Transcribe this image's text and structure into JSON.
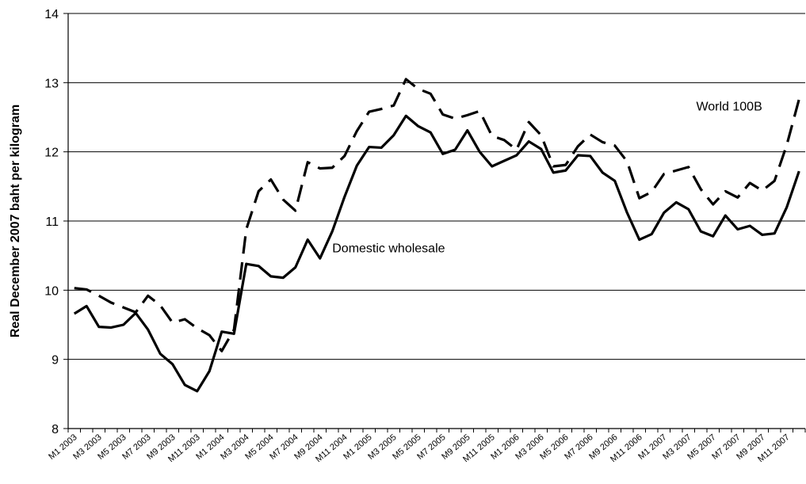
{
  "chart_data": {
    "type": "line",
    "title": "",
    "xlabel": "",
    "ylabel": "Real December 2007 baht per kilogram",
    "ylim": [
      8,
      14
    ],
    "yticks": [
      8,
      9,
      10,
      11,
      12,
      13,
      14
    ],
    "grid": true,
    "legend": "none",
    "x": [
      "M1 2003",
      "M2 2003",
      "M3 2003",
      "M4 2003",
      "M5 2003",
      "M6 2003",
      "M7 2003",
      "M8 2003",
      "M9 2003",
      "M10 2003",
      "M11 2003",
      "M12 2003",
      "M1 2004",
      "M2 2004",
      "M3 2004",
      "M4 2004",
      "M5 2004",
      "M6 2004",
      "M7 2004",
      "M8 2004",
      "M9 2004",
      "M10 2004",
      "M11 2004",
      "M12 2004",
      "M1 2005",
      "M2 2005",
      "M3 2005",
      "M4 2005",
      "M5 2005",
      "M6 2005",
      "M7 2005",
      "M8 2005",
      "M9 2005",
      "M10 2005",
      "M11 2005",
      "M12 2005",
      "M1 2006",
      "M2 2006",
      "M3 2006",
      "M4 2006",
      "M5 2006",
      "M6 2006",
      "M7 2006",
      "M8 2006",
      "M9 2006",
      "M10 2006",
      "M11 2006",
      "M12 2006",
      "M1 2007",
      "M2 2007",
      "M3 2007",
      "M4 2007",
      "M5 2007",
      "M6 2007",
      "M7 2007",
      "M8 2007",
      "M9 2007",
      "M10 2007",
      "M11 2007",
      "M12 2007"
    ],
    "xtick_labels": [
      "M1 2003",
      "M3 2003",
      "M5 2003",
      "M7 2003",
      "M9 2003",
      "M11 2003",
      "M1 2004",
      "M3 2004",
      "M5 2004",
      "M7 2004",
      "M9 2004",
      "M11 2004",
      "M1 2005",
      "M3 2005",
      "M5 2005",
      "M7 2005",
      "M9 2005",
      "M11 2005",
      "M1 2006",
      "M3 2006",
      "M5 2006",
      "M7 2006",
      "M9 2006",
      "M11 2006",
      "M1 2007",
      "M3 2007",
      "M5 2007",
      "M7 2007",
      "M9 2007",
      "M11 2007"
    ],
    "series": [
      {
        "name": "Domestic wholesale",
        "style": "solid",
        "color": "#000000",
        "values": [
          9.66,
          9.77,
          9.47,
          9.46,
          9.5,
          9.67,
          9.43,
          9.08,
          8.93,
          8.63,
          8.54,
          8.83,
          9.4,
          9.37,
          10.38,
          10.35,
          10.2,
          10.18,
          10.33,
          10.73,
          10.46,
          10.85,
          11.35,
          11.8,
          12.07,
          12.06,
          12.24,
          12.52,
          12.37,
          12.28,
          11.97,
          12.03,
          12.31,
          12.0,
          11.79,
          11.87,
          11.95,
          12.15,
          12.04,
          11.7,
          11.73,
          11.95,
          11.94,
          11.7,
          11.58,
          11.12,
          10.73,
          10.81,
          11.12,
          11.27,
          11.17,
          10.85,
          10.78,
          11.08,
          10.88,
          10.93,
          10.8,
          10.82,
          11.2,
          11.72
        ]
      },
      {
        "name": "World 100B",
        "style": "dashed",
        "color": "#000000",
        "values": [
          10.03,
          10.01,
          9.92,
          9.82,
          9.75,
          9.68,
          9.92,
          9.78,
          9.53,
          9.58,
          9.45,
          9.35,
          9.12,
          9.43,
          10.88,
          11.43,
          11.6,
          11.31,
          11.15,
          11.85,
          11.76,
          11.77,
          11.94,
          12.3,
          12.58,
          12.62,
          12.67,
          13.05,
          12.91,
          12.84,
          12.54,
          12.48,
          12.53,
          12.59,
          12.23,
          12.17,
          12.03,
          12.43,
          12.24,
          11.79,
          11.81,
          12.08,
          12.25,
          12.14,
          12.09,
          11.86,
          11.33,
          11.42,
          11.68,
          11.73,
          11.78,
          11.46,
          11.24,
          11.43,
          11.34,
          11.55,
          11.44,
          11.58,
          12.1,
          12.76
        ]
      }
    ],
    "annotations": [
      {
        "text": "World 100B",
        "x": "M9 2007",
        "y": 12.6
      },
      {
        "text": "Domestic wholesale",
        "x": "M10 2004",
        "y": 10.55
      }
    ]
  }
}
